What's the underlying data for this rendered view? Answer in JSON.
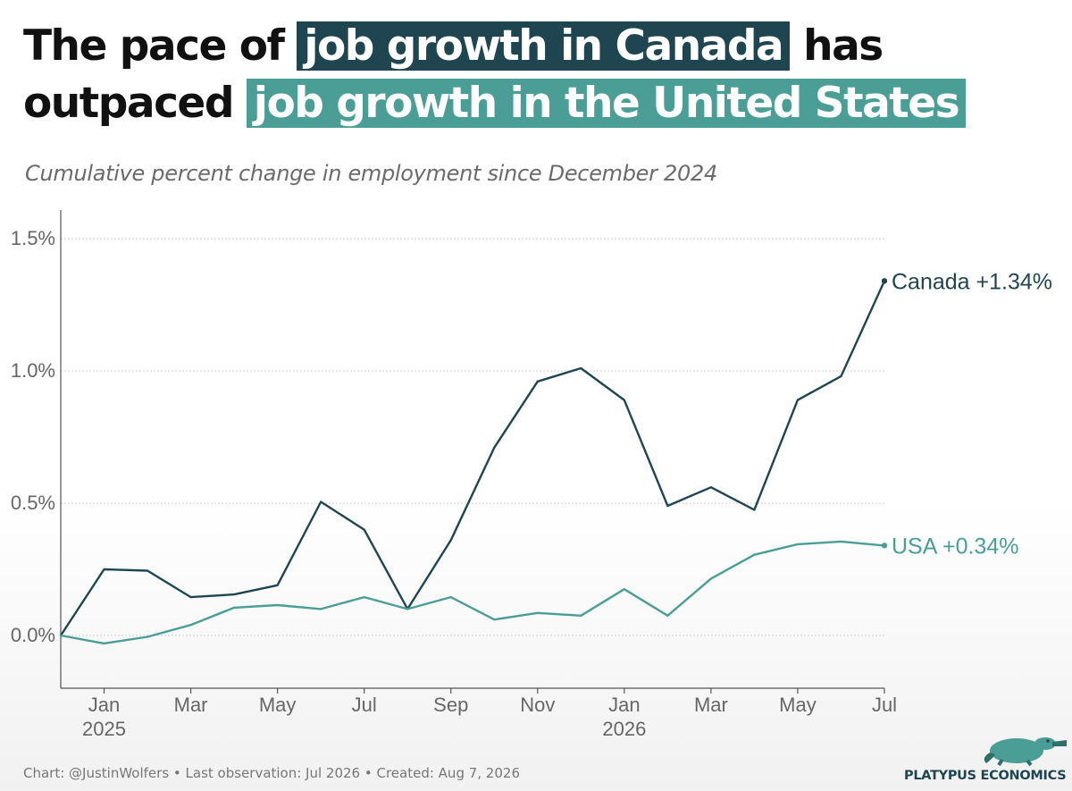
{
  "header": {
    "title_part1": "The pace of",
    "title_highlight1": "job growth in Canada",
    "title_part2": "has",
    "title_part3": "outpaced",
    "title_highlight2": "job growth in the United States",
    "subtitle": "Cumulative percent change in employment since December 2024"
  },
  "footer": {
    "credit": "Chart: @JustinWolfers • Last observation: Jul 2026 • Created: Aug 7, 2026",
    "logo_text": "PLATYPUS ECONOMICS"
  },
  "colors": {
    "canada": "#1f4650",
    "usa": "#4a9e95",
    "grid": "#cfcfcf",
    "axis": "#555555"
  },
  "chart_data": {
    "type": "line",
    "x": [
      "Dec 2024",
      "Jan 2025",
      "Feb 2025",
      "Mar 2025",
      "Apr 2025",
      "May 2025",
      "Jun 2025",
      "Jul 2025",
      "Aug 2025",
      "Sep 2025",
      "Oct 2025",
      "Nov 2025",
      "Dec 2025",
      "Jan 2026",
      "Feb 2026",
      "Mar 2026",
      "Apr 2026",
      "May 2026",
      "Jun 2026",
      "Jul 2026"
    ],
    "series": [
      {
        "name": "Canada",
        "end_label": "Canada +1.34%",
        "color": "#1f4650",
        "values": [
          0.0,
          0.25,
          0.245,
          0.145,
          0.155,
          0.19,
          0.505,
          0.4,
          0.1,
          0.36,
          0.71,
          0.96,
          1.01,
          0.89,
          0.49,
          0.56,
          0.475,
          0.89,
          0.98,
          1.34
        ]
      },
      {
        "name": "USA",
        "end_label": "USA +0.34%",
        "color": "#4a9e95",
        "values": [
          0.0,
          -0.03,
          -0.005,
          0.04,
          0.105,
          0.115,
          0.1,
          0.145,
          0.1,
          0.145,
          0.06,
          0.085,
          0.075,
          0.175,
          0.075,
          0.215,
          0.305,
          0.345,
          0.355,
          0.34
        ]
      }
    ],
    "ylim": [
      -0.2,
      1.6
    ],
    "yticks": [
      0.0,
      0.5,
      1.0,
      1.5
    ],
    "ytick_labels": [
      "0.0%",
      "0.5%",
      "1.0%",
      "1.5%"
    ],
    "xticks": [
      {
        "index": 1,
        "label": "Jan",
        "sublabel": "2025"
      },
      {
        "index": 3,
        "label": "Mar",
        "sublabel": ""
      },
      {
        "index": 5,
        "label": "May",
        "sublabel": ""
      },
      {
        "index": 7,
        "label": "Jul",
        "sublabel": ""
      },
      {
        "index": 9,
        "label": "Sep",
        "sublabel": ""
      },
      {
        "index": 11,
        "label": "Nov",
        "sublabel": ""
      },
      {
        "index": 13,
        "label": "Jan",
        "sublabel": "2026"
      },
      {
        "index": 15,
        "label": "Mar",
        "sublabel": ""
      },
      {
        "index": 17,
        "label": "May",
        "sublabel": ""
      },
      {
        "index": 19,
        "label": "Jul",
        "sublabel": ""
      }
    ],
    "grid": true,
    "xlabel": "",
    "ylabel": ""
  }
}
